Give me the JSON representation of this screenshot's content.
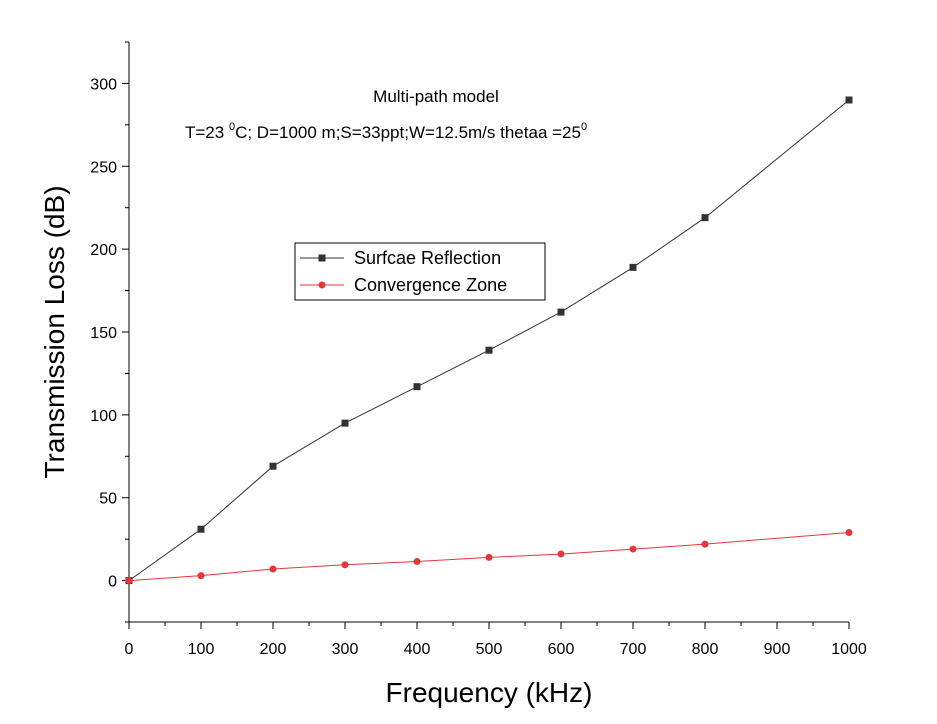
{
  "chart_data": {
    "type": "line",
    "title": "Multi-path model",
    "subtitle": {
      "part1": "T=23 ",
      "sup1": "0",
      "part2": "C; D=1000 m;S=33ppt;W=12.5m/s thetaa =25",
      "sup2": "0"
    },
    "xlabel": "Frequency (kHz)",
    "ylabel": "Transmission Loss (dB)",
    "xlim": [
      0,
      1000
    ],
    "ylim": [
      -25,
      325
    ],
    "x_ticks": [
      0,
      100,
      200,
      300,
      400,
      500,
      600,
      700,
      800,
      900,
      1000
    ],
    "y_ticks": [
      0,
      50,
      100,
      150,
      200,
      250,
      300
    ],
    "grid": false,
    "legend_position": "center-left",
    "x": [
      0,
      100,
      200,
      300,
      400,
      500,
      600,
      700,
      800,
      900,
      1000
    ],
    "series": [
      {
        "name": "Surfcae Reflection",
        "color": "#333333",
        "marker": "square",
        "values": [
          0,
          31,
          69,
          95,
          117,
          139,
          162,
          189,
          219,
          null,
          290
        ]
      },
      {
        "name": "Convergence Zone",
        "color": "#e8353b",
        "marker": "circle",
        "values": [
          0,
          3,
          7,
          9.5,
          11.5,
          14,
          16,
          19,
          22,
          null,
          29
        ]
      }
    ]
  }
}
